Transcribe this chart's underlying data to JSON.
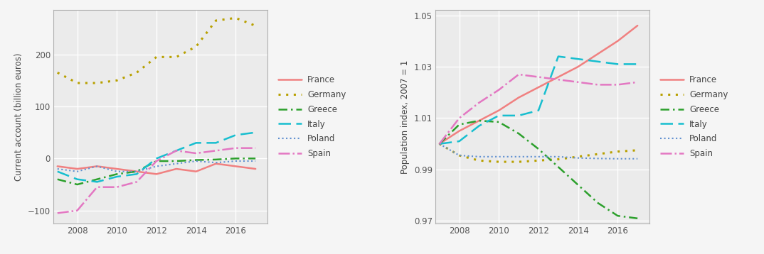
{
  "years": [
    2007,
    2008,
    2009,
    2010,
    2011,
    2012,
    2013,
    2014,
    2015,
    2016,
    2017
  ],
  "current_account": {
    "France": [
      -15,
      -20,
      -15,
      -20,
      -25,
      -30,
      -20,
      -25,
      -10,
      -15,
      -20
    ],
    "Germany": [
      165,
      145,
      145,
      150,
      165,
      195,
      195,
      215,
      265,
      270,
      255
    ],
    "Greece": [
      -40,
      -50,
      -40,
      -30,
      -25,
      -5,
      -5,
      -3,
      -2,
      0,
      0
    ],
    "Italy": [
      -25,
      -40,
      -45,
      -35,
      -30,
      0,
      15,
      30,
      30,
      45,
      50
    ],
    "Poland": [
      -20,
      -25,
      -15,
      -25,
      -25,
      -15,
      -10,
      -5,
      -8,
      -5,
      -5
    ],
    "Spain": [
      -105,
      -100,
      -55,
      -55,
      -45,
      -5,
      15,
      10,
      15,
      20,
      20
    ]
  },
  "population": {
    "France": [
      1.0,
      1.005,
      1.009,
      1.013,
      1.018,
      1.022,
      1.026,
      1.03,
      1.035,
      1.04,
      1.046
    ],
    "Germany": [
      1.0,
      0.9955,
      0.9935,
      0.993,
      0.993,
      0.9935,
      0.994,
      0.995,
      0.996,
      0.997,
      0.9975
    ],
    "Greece": [
      1.0,
      1.0075,
      1.009,
      1.0085,
      1.004,
      0.998,
      0.991,
      0.984,
      0.977,
      0.972,
      0.971
    ],
    "Italy": [
      1.0,
      1.001,
      1.007,
      1.011,
      1.011,
      1.013,
      1.034,
      1.033,
      1.032,
      1.031,
      1.031
    ],
    "Poland": [
      1.0,
      0.9955,
      0.995,
      0.995,
      0.995,
      0.995,
      0.995,
      0.9945,
      0.9943,
      0.9942,
      0.9942
    ],
    "Spain": [
      1.0,
      1.01,
      1.016,
      1.021,
      1.027,
      1.026,
      1.025,
      1.024,
      1.023,
      1.023,
      1.024
    ]
  },
  "colors": {
    "France": "#f08080",
    "Germany": "#b8a000",
    "Greece": "#2ca02c",
    "Italy": "#17becf",
    "Poland": "#6090d0",
    "Spain": "#e377c2"
  },
  "countries": [
    "France",
    "Germany",
    "Greece",
    "Italy",
    "Poland",
    "Spain"
  ],
  "left_ylabel": "Current account (billion euros)",
  "right_ylabel": "Population index, 2007 = 1",
  "left_ylim": [
    -125,
    285
  ],
  "right_ylim": [
    0.969,
    1.052
  ],
  "left_yticks": [
    -100,
    0,
    100,
    200
  ],
  "right_yticks": [
    0.97,
    0.99,
    1.01,
    1.03,
    1.05
  ],
  "xticks": [
    2008,
    2010,
    2012,
    2014,
    2016
  ],
  "xlim": [
    2006.8,
    2017.6
  ],
  "background_color": "#ebebeb",
  "grid_color": "#ffffff",
  "fig_facecolor": "#f5f5f5"
}
